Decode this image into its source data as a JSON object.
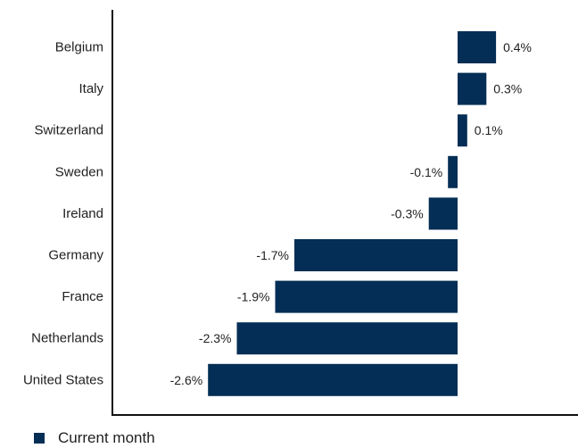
{
  "chart_data": {
    "type": "bar",
    "orientation": "horizontal",
    "categories": [
      "Belgium",
      "Italy",
      "Switzerland",
      "Sweden",
      "Ireland",
      "Germany",
      "France",
      "Netherlands",
      "United States"
    ],
    "series": [
      {
        "name": "Current month",
        "values": [
          0.4,
          0.3,
          0.1,
          -0.1,
          -0.3,
          -1.7,
          -1.9,
          -2.3,
          -2.6
        ],
        "labels": [
          "0.4%",
          "0.3%",
          "0.1%",
          "-0.1%",
          "-0.3%",
          "-1.7%",
          "-1.9%",
          "-2.3%",
          "-2.6%"
        ]
      }
    ],
    "xlim": [
      -3.65,
      1.2
    ],
    "value_suffix": "%",
    "grid": false,
    "legend_position": "bottom-left",
    "colors": {
      "bar": "#042e55",
      "axis": "#111111"
    }
  }
}
